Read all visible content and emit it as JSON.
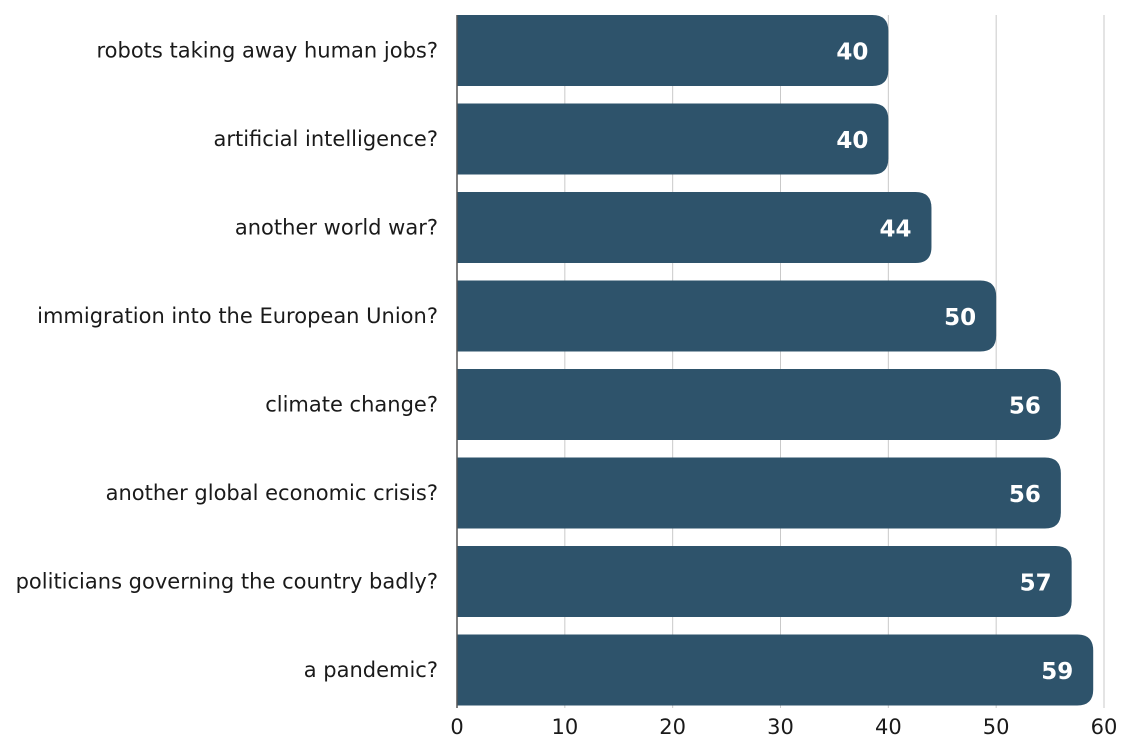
{
  "chart_data": {
    "type": "bar",
    "orientation": "horizontal",
    "categories": [
      "robots taking away human jobs?",
      "artificial intelligence?",
      "another world war?",
      "immigration into the European Union?",
      "climate change?",
      "another global economic crisis?",
      "politicians governing the country badly?",
      "a pandemic?"
    ],
    "values": [
      40,
      40,
      44,
      50,
      56,
      56,
      57,
      59
    ],
    "data_labels": [
      "40",
      "40",
      "44",
      "50",
      "56",
      "56",
      "57",
      "59"
    ],
    "xlim": [
      0,
      60
    ],
    "x_ticks": [
      0,
      10,
      20,
      30,
      40,
      50,
      60
    ],
    "x_tick_labels": [
      "0",
      "10",
      "20",
      "30",
      "40",
      "50",
      "60"
    ],
    "title": "",
    "xlabel": "",
    "ylabel": "",
    "grid": "vertical",
    "legend": "none",
    "bar_color": "#2e536b",
    "value_label_color": "#ffffff",
    "grid_color": "#c9c9c9"
  }
}
